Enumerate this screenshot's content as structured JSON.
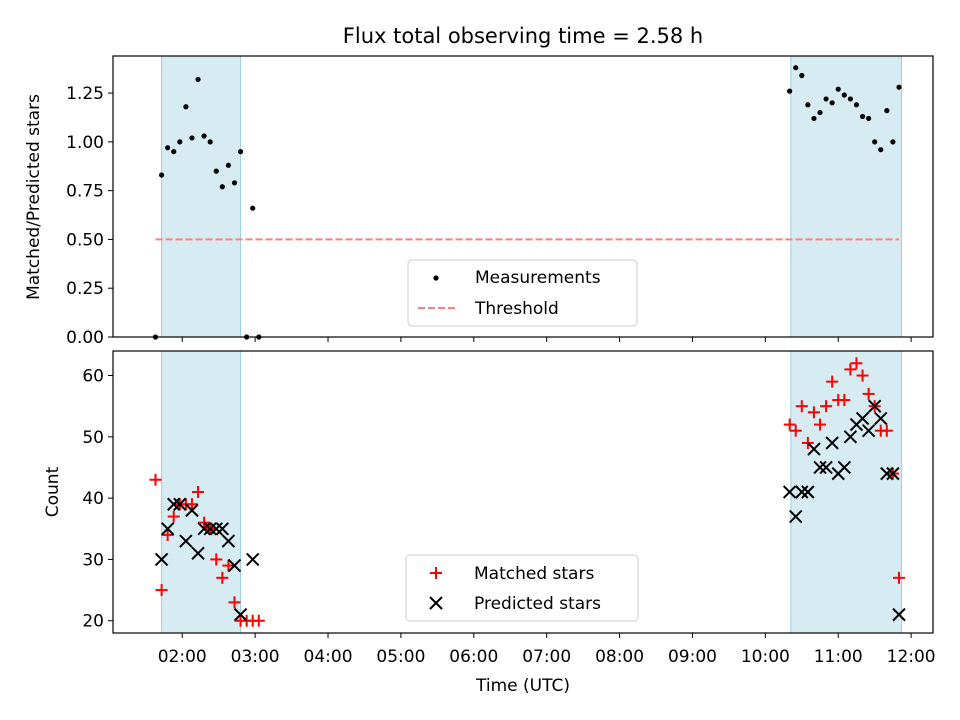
{
  "chart_data": {
    "title": "Flux total observing time = 2.58 h",
    "xlabel": "Time (UTC)",
    "x_ticks": [
      "02:00",
      "03:00",
      "04:00",
      "05:00",
      "06:00",
      "07:00",
      "08:00",
      "09:00",
      "10:00",
      "11:00",
      "12:00"
    ],
    "x_range_hours": [
      1.05,
      12.3
    ],
    "panels": [
      {
        "type": "scatter",
        "ylabel": "Matched/Predicted stars",
        "ylim": [
          0,
          1.44
        ],
        "y_ticks": [
          "0.00",
          "0.25",
          "0.50",
          "0.75",
          "1.00",
          "1.25"
        ],
        "shaded_spans_hours": [
          [
            1.717,
            2.8
          ],
          [
            10.35,
            11.867
          ]
        ],
        "series": [
          {
            "name": "Measurements",
            "color": "#000000",
            "marker": "dot",
            "x": [
              "01:38",
              "01:43",
              "01:48",
              "01:53",
              "01:58",
              "02:03",
              "02:08",
              "02:13",
              "02:18",
              "02:23",
              "02:28",
              "02:33",
              "02:38",
              "02:43",
              "02:48",
              "02:53",
              "02:58",
              "03:03",
              "10:20",
              "10:25",
              "10:30",
              "10:35",
              "10:40",
              "10:45",
              "10:50",
              "10:55",
              "11:00",
              "11:05",
              "11:10",
              "11:15",
              "11:20",
              "11:25",
              "11:30",
              "11:35",
              "11:40",
              "11:45",
              "11:50"
            ],
            "y": [
              0.0,
              0.83,
              0.97,
              0.95,
              1.0,
              1.18,
              1.02,
              1.32,
              1.03,
              1.0,
              0.85,
              0.77,
              0.88,
              0.79,
              0.95,
              0.0,
              0.66,
              0.0,
              1.26,
              1.38,
              1.34,
              1.19,
              1.12,
              1.15,
              1.22,
              1.2,
              1.27,
              1.24,
              1.22,
              1.19,
              1.13,
              1.12,
              1.0,
              0.96,
              1.16,
              1.0,
              1.28
            ]
          },
          {
            "name": "Threshold",
            "color": "#ff7f7f",
            "style": "dashed",
            "x": [
              "01:38",
              "11:50"
            ],
            "y": [
              0.5,
              0.5
            ]
          }
        ],
        "legend": [
          "Measurements",
          "Threshold"
        ],
        "legend_position": "bottom-center"
      },
      {
        "type": "scatter",
        "ylabel": "Count",
        "ylim": [
          18,
          64
        ],
        "y_ticks": [
          "20",
          "30",
          "40",
          "50",
          "60"
        ],
        "shaded_spans_hours": [
          [
            1.717,
            2.8
          ],
          [
            10.35,
            11.867
          ]
        ],
        "series": [
          {
            "name": "Matched stars",
            "color": "#ff0000",
            "marker": "plus",
            "x": [
              "01:38",
              "01:43",
              "01:48",
              "01:53",
              "01:58",
              "02:03",
              "02:08",
              "02:13",
              "02:18",
              "02:23",
              "02:28",
              "02:33",
              "02:38",
              "02:43",
              "02:48",
              "02:53",
              "02:58",
              "03:03",
              "10:20",
              "10:25",
              "10:30",
              "10:35",
              "10:40",
              "10:45",
              "10:50",
              "10:55",
              "11:00",
              "11:05",
              "11:10",
              "11:15",
              "11:20",
              "11:25",
              "11:30",
              "11:35",
              "11:40",
              "11:45",
              "11:50"
            ],
            "y": [
              43,
              25,
              34,
              37,
              39,
              39,
              39,
              41,
              36,
              35,
              30,
              27,
              29,
              23,
              20,
              20,
              20,
              20,
              52,
              51,
              55,
              49,
              54,
              52,
              55,
              59,
              56,
              56,
              61,
              62,
              60,
              57,
              55,
              51,
              51,
              44,
              27
            ]
          },
          {
            "name": "Predicted stars",
            "color": "#000000",
            "marker": "x",
            "x": [
              "01:43",
              "01:48",
              "01:53",
              "01:58",
              "02:03",
              "02:08",
              "02:13",
              "02:18",
              "02:23",
              "02:28",
              "02:33",
              "02:38",
              "02:43",
              "02:48",
              "02:58",
              "10:20",
              "10:25",
              "10:30",
              "10:35",
              "10:40",
              "10:45",
              "10:50",
              "10:55",
              "11:00",
              "11:05",
              "11:10",
              "11:15",
              "11:20",
              "11:25",
              "11:30",
              "11:35",
              "11:40",
              "11:45",
              "11:50"
            ],
            "y": [
              30,
              35,
              39,
              39,
              33,
              38,
              31,
              35,
              35,
              35,
              35,
              33,
              29,
              21,
              30,
              41,
              37,
              41,
              41,
              48,
              45,
              45,
              49,
              44,
              45,
              50,
              52,
              53,
              51,
              55,
              53,
              44,
              44,
              21
            ]
          }
        ],
        "legend": [
          "Matched stars",
          "Predicted stars"
        ],
        "legend_position": "bottom-center"
      }
    ]
  }
}
